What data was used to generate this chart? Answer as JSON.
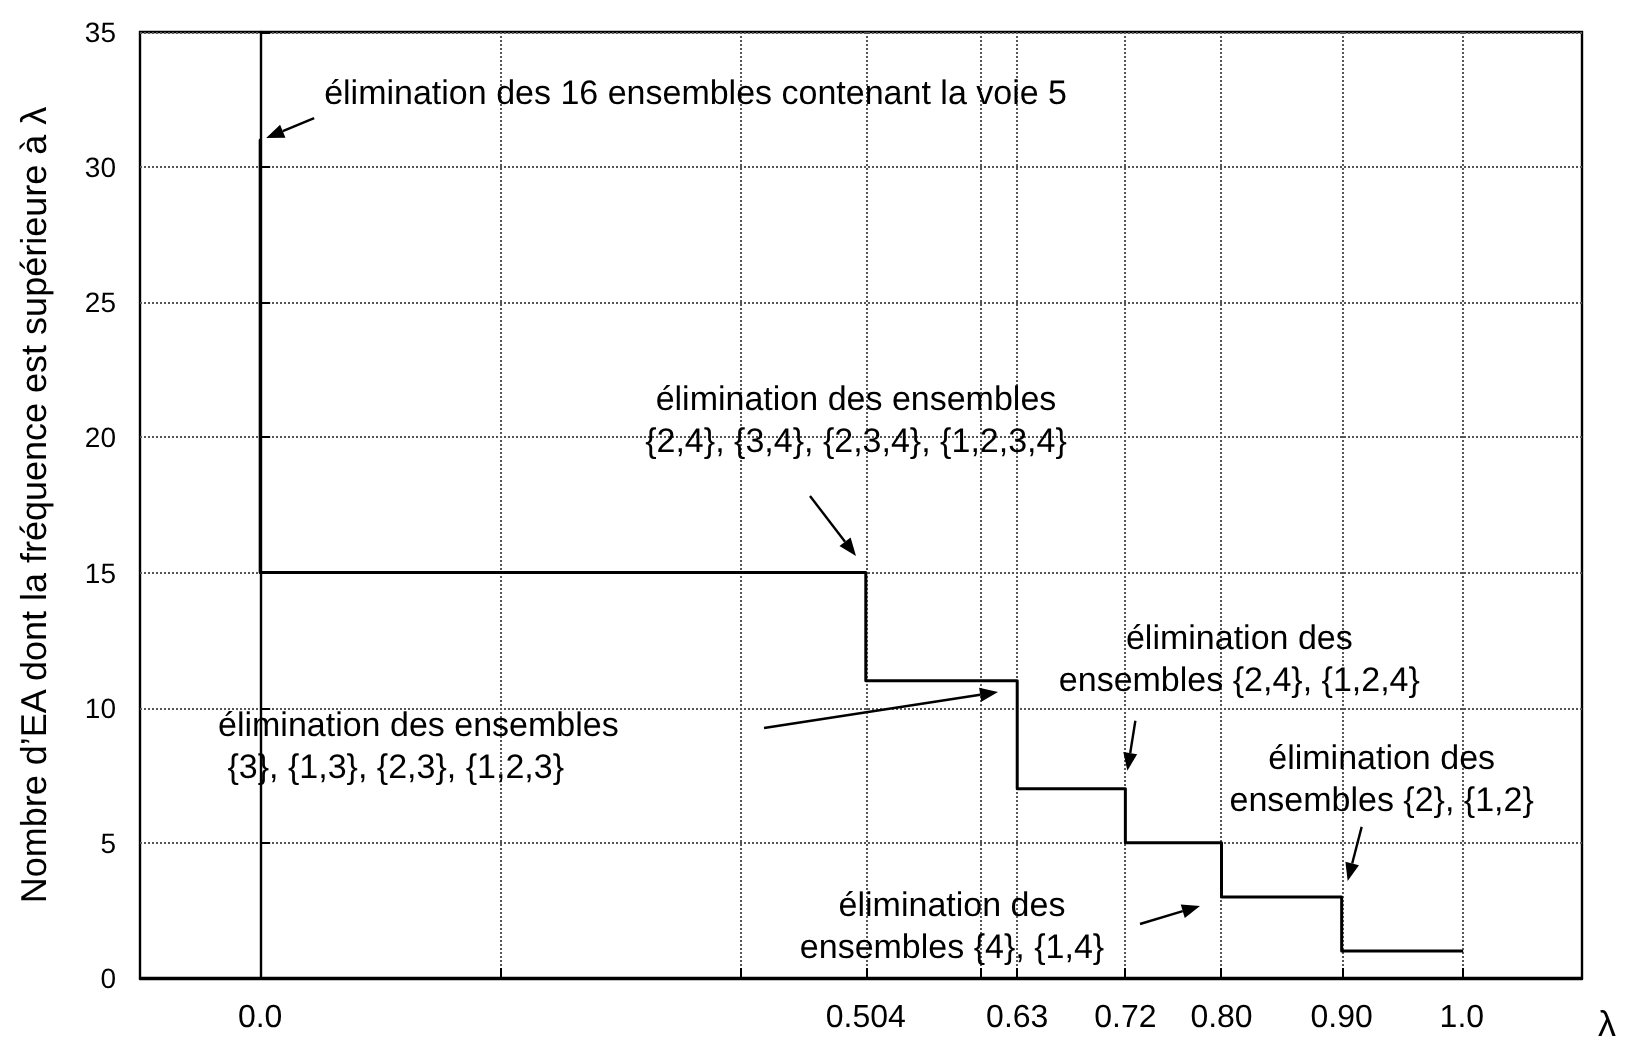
{
  "chart_data": {
    "type": "line",
    "xlabel": "λ",
    "ylabel": "Nombre d’EA dont la fréquence est supérieure à λ",
    "x": [
      0,
      0,
      0.504,
      0.504,
      0.63,
      0.63,
      0.72,
      0.72,
      0.8,
      0.8,
      0.9,
      0.9,
      1.0
    ],
    "series": [
      {
        "color": "#000000",
        "values": [
          31,
          15,
          15,
          11,
          11,
          7,
          7,
          5,
          5,
          3,
          3,
          1,
          1
        ]
      }
    ],
    "xlim": [
      -0.1,
      1.1
    ],
    "xticks": [
      {
        "value": 0,
        "label": "0.0"
      },
      {
        "value": 0.2,
        "label": null
      },
      {
        "value": 0.4,
        "label": null
      },
      0.504,
      {
        "value": 0.6,
        "label": null
      },
      0.63,
      0.72,
      {
        "value": 0.8,
        "label": "0.80"
      },
      {
        "value": 0.9,
        "label": "0.90"
      },
      {
        "value": 1.0,
        "label": "1.0"
      }
    ],
    "ylim": [
      0,
      35
    ],
    "yticks": [
      0,
      5,
      10,
      15,
      20,
      25,
      30,
      35
    ],
    "grid": true,
    "marker": "none",
    "line_style": "solid",
    "annotations": [
      {
        "text": "élimination des 16 ensembles contenant la voie 5",
        "x": 0,
        "y": 31
      },
      "élimination des ensembles\n{2,4}, {3,4}, {2,3,4}, {1,2,3,4}",
      "élimination des ensembles\n {3}, {1,3}, {2,3}, {1,2,3}",
      {
        "text": "élimination des\nensembles {2,4}, {1,2,4}",
        "x": 0.72,
        "y": 7
      },
      "élimination des\nensembles {4}, {1,4}",
      {
        "text": "élimination des\nensembles {2}, {1,2}",
        "x": 0.9,
        "y": 3
      }
    ]
  }
}
